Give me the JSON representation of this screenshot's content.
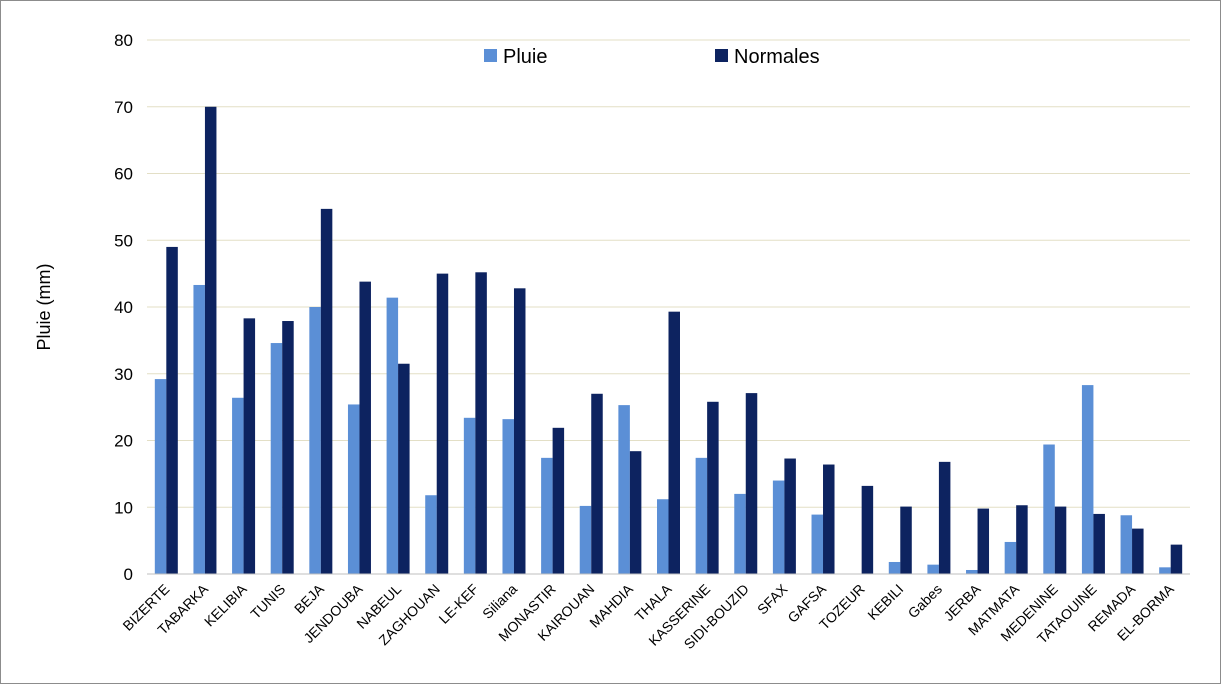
{
  "chart_data": {
    "type": "bar",
    "ylabel": "Pluie (mm)",
    "xlabel": "",
    "ylim": [
      0,
      80
    ],
    "yticks": [
      0,
      10,
      20,
      30,
      40,
      50,
      60,
      70,
      80
    ],
    "grid": true,
    "legend_position": "top",
    "categories": [
      "BIZERTE",
      "TABARKA",
      "KELIBIA",
      "TUNIS",
      "BEJA",
      "JENDOUBA",
      "NABEUL",
      "ZAGHOUAN",
      "LE-KEF",
      "Siliana",
      "MONASTIR",
      "KAIROUAN",
      "MAHDIA",
      "THALA",
      "KASSERINE",
      "SIDI-BOUZID",
      "SFAX",
      "GAFSA",
      "TOZEUR",
      "KEBILI",
      "Gabes",
      "JERBA",
      "MATMATA",
      "MEDENINE",
      "TATAOUINE",
      "REMADA",
      "EL-BORMA"
    ],
    "series": [
      {
        "name": "Pluie",
        "color": "#5b8fd6",
        "values": [
          29.2,
          43.3,
          26.4,
          34.6,
          40.0,
          25.4,
          41.4,
          11.8,
          23.4,
          23.2,
          17.4,
          10.2,
          25.3,
          11.2,
          17.4,
          12.0,
          14.0,
          8.9,
          0.0,
          1.8,
          1.4,
          0.6,
          4.8,
          19.4,
          28.3,
          8.8,
          1.0
        ]
      },
      {
        "name": "Normales",
        "color": "#0d2360",
        "values": [
          49.0,
          70.0,
          38.3,
          37.9,
          54.7,
          43.8,
          31.5,
          45.0,
          45.2,
          42.8,
          21.9,
          27.0,
          18.4,
          39.3,
          25.8,
          27.1,
          17.3,
          16.4,
          13.2,
          10.1,
          16.8,
          9.8,
          10.3,
          10.1,
          9.0,
          6.8,
          4.4
        ]
      }
    ]
  }
}
